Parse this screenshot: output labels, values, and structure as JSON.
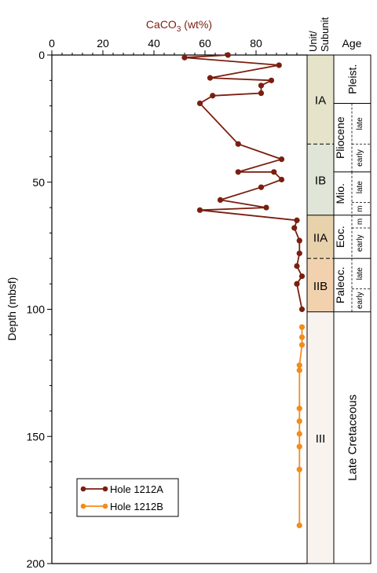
{
  "chart_data": {
    "type": "line",
    "title": "",
    "xlabel_main": "CaCO",
    "xlabel_sub": "3",
    "xlabel_tail": " (wt%)",
    "ylabel": "Depth (mbsf)",
    "xlim": [
      0,
      100
    ],
    "ylim": [
      0,
      200
    ],
    "xticks": [
      "0",
      "20",
      "40",
      "60",
      "80"
    ],
    "yticks": [
      "0",
      "50",
      "100",
      "150",
      "200"
    ],
    "series": [
      {
        "name": "Hole 1212A",
        "color": "#7a1f10",
        "points": [
          [
            69,
            0
          ],
          [
            52,
            1
          ],
          [
            89,
            4
          ],
          [
            62,
            9
          ],
          [
            86,
            10
          ],
          [
            82,
            12
          ],
          [
            82,
            15
          ],
          [
            63,
            16
          ],
          [
            58,
            19
          ],
          [
            73,
            35
          ],
          [
            90,
            41
          ],
          [
            73,
            46
          ],
          [
            87,
            46
          ],
          [
            90,
            49
          ],
          [
            82,
            52
          ],
          [
            66,
            57
          ],
          [
            84,
            60
          ],
          [
            58,
            61
          ],
          [
            96,
            65
          ],
          [
            95,
            68
          ],
          [
            97,
            73
          ],
          [
            97,
            78
          ],
          [
            96,
            83
          ],
          [
            98,
            87
          ],
          [
            96,
            90
          ],
          [
            98,
            100
          ]
        ]
      },
      {
        "name": "Hole 1212B",
        "color": "#f28c1c",
        "points": [
          [
            98,
            107
          ],
          [
            98,
            111
          ],
          [
            98,
            114
          ],
          [
            97,
            122
          ],
          [
            97,
            124
          ],
          [
            97,
            139
          ],
          [
            97,
            144
          ],
          [
            97,
            149
          ],
          [
            97,
            154
          ],
          [
            97,
            163
          ],
          [
            97,
            185
          ]
        ]
      }
    ],
    "legend": {
      "placement": "bottom-left",
      "entries": [
        "Hole 1212A",
        "Hole 1212B"
      ]
    }
  },
  "stratigraphy": {
    "unit_header_line1": "Unit/",
    "unit_header_line2": "Subunit",
    "age_header": "Age",
    "units": [
      {
        "label": "IA",
        "top": 0,
        "bottom": 35,
        "color": "#e5e4cb"
      },
      {
        "label": "IB",
        "top": 35,
        "bottom": 63,
        "color": "#dfe6d8"
      },
      {
        "label": "IIA",
        "top": 63,
        "bottom": 80,
        "color": "#e7d2ac"
      },
      {
        "label": "IIB",
        "top": 80,
        "bottom": 101,
        "color": "#f2d2ae"
      },
      {
        "label": "III",
        "top": 101,
        "bottom": 200,
        "color": "#f8f3ef"
      }
    ],
    "unit_boundaries": [
      {
        "depth": 35,
        "style": "dashed"
      },
      {
        "depth": 63,
        "style": "solid"
      },
      {
        "depth": 80,
        "style": "dashed"
      },
      {
        "depth": 101,
        "style": "solid"
      }
    ],
    "ages": [
      {
        "label": "Pleist.",
        "top": 0,
        "bottom": 19,
        "sub": []
      },
      {
        "label": "Pliocene",
        "top": 19,
        "bottom": 46,
        "sub": [
          {
            "label": "late",
            "top": 19,
            "bottom": 35
          },
          {
            "label": "early",
            "top": 35,
            "bottom": 46
          }
        ]
      },
      {
        "label": "Mio.",
        "top": 46,
        "bottom": 63,
        "sub": [
          {
            "label": "late",
            "top": 46,
            "bottom": 58
          },
          {
            "label": "m",
            "top": 58,
            "bottom": 63
          }
        ]
      },
      {
        "label": "Eoc.",
        "top": 63,
        "bottom": 80,
        "sub": [
          {
            "label": "m",
            "top": 63,
            "bottom": 68
          },
          {
            "label": "early",
            "top": 68,
            "bottom": 80
          }
        ]
      },
      {
        "label": "Paleoc.",
        "top": 80,
        "bottom": 101,
        "sub": [
          {
            "label": "late",
            "top": 80,
            "bottom": 92
          },
          {
            "label": "early",
            "top": 92,
            "bottom": 101
          }
        ]
      },
      {
        "label": "Late Cretaceous",
        "top": 101,
        "bottom": 200,
        "sub": []
      }
    ]
  }
}
